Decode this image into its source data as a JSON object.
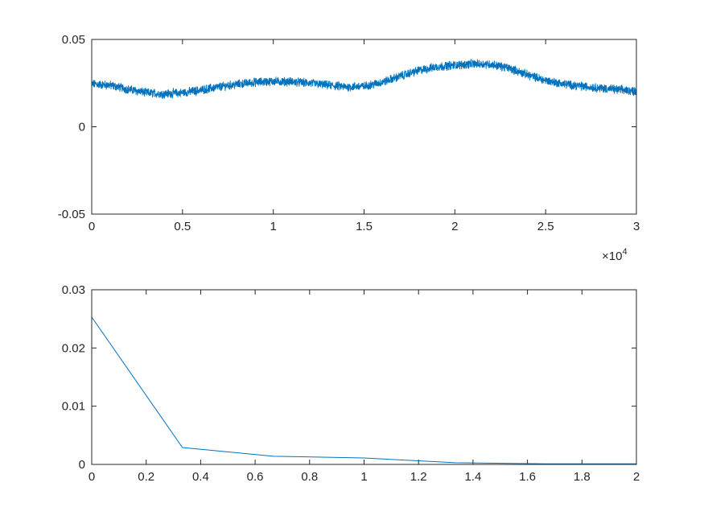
{
  "chart_data": [
    {
      "type": "line",
      "x_range": [
        0,
        30000
      ],
      "ylim": [
        -0.05,
        0.05
      ],
      "x_ticks": [
        0,
        5000,
        10000,
        15000,
        20000,
        25000,
        30000
      ],
      "x_tick_labels": [
        "0",
        "0.5",
        "1",
        "1.5",
        "2",
        "2.5",
        "3"
      ],
      "y_ticks": [
        -0.05,
        0,
        0.05
      ],
      "y_tick_labels": [
        "-0.05",
        "0",
        "0.05"
      ],
      "x_exponent_base": "×10",
      "x_exponent_power": "4",
      "grid": false,
      "line_color": "#0072BD",
      "series": [
        {
          "noise_amplitude": 0.0022,
          "envelope": [
            [
              0,
              0.0245
            ],
            [
              1000,
              0.0238
            ],
            [
              2000,
              0.0215
            ],
            [
              3000,
              0.0195
            ],
            [
              4000,
              0.0188
            ],
            [
              5000,
              0.0195
            ],
            [
              6000,
              0.021
            ],
            [
              7000,
              0.0228
            ],
            [
              8000,
              0.0243
            ],
            [
              9000,
              0.0255
            ],
            [
              10000,
              0.026
            ],
            [
              11000,
              0.0258
            ],
            [
              12000,
              0.025
            ],
            [
              13000,
              0.0238
            ],
            [
              14000,
              0.0228
            ],
            [
              15000,
              0.0232
            ],
            [
              16000,
              0.0255
            ],
            [
              17000,
              0.029
            ],
            [
              18000,
              0.0322
            ],
            [
              19000,
              0.0343
            ],
            [
              20000,
              0.0353
            ],
            [
              21000,
              0.036
            ],
            [
              22000,
              0.0358
            ],
            [
              23000,
              0.0335
            ],
            [
              24000,
              0.0298
            ],
            [
              25000,
              0.0265
            ],
            [
              26000,
              0.0245
            ],
            [
              27000,
              0.0232
            ],
            [
              28000,
              0.0222
            ],
            [
              29000,
              0.0212
            ],
            [
              30000,
              0.0205
            ]
          ]
        }
      ]
    },
    {
      "type": "line",
      "xlim": [
        0,
        2
      ],
      "ylim": [
        0,
        0.03
      ],
      "x_ticks": [
        0,
        0.2,
        0.4,
        0.6,
        0.8,
        1,
        1.2,
        1.4,
        1.6,
        1.8,
        2
      ],
      "x_tick_labels": [
        "0",
        "0.2",
        "0.4",
        "0.6",
        "0.8",
        "1",
        "1.2",
        "1.4",
        "1.6",
        "1.8",
        "2"
      ],
      "y_ticks": [
        0,
        0.01,
        0.02,
        0.03
      ],
      "y_tick_labels": [
        "0",
        "0.01",
        "0.02",
        "0.03"
      ],
      "grid": false,
      "line_color": "#0072BD",
      "series": [
        {
          "x": [
            0,
            0.333,
            0.667,
            1.0,
            1.333,
            1.667,
            2.0
          ],
          "values": [
            0.0253,
            0.0029,
            0.0014,
            0.0011,
            0.0003,
            0.0001,
            0.0001
          ]
        }
      ]
    }
  ]
}
